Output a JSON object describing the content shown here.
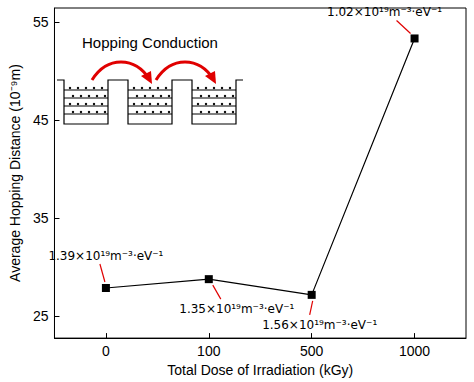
{
  "chart_data": {
    "type": "line",
    "categories": [
      "0",
      "100",
      "500",
      "1000"
    ],
    "values": [
      27.9,
      28.8,
      27.2,
      53.3
    ],
    "color": "#000000",
    "marker": "square",
    "xlabel": "Total Dose of Irradiation (kGy)",
    "ylabel": "Average Hopping Distance (10⁻⁹m)",
    "ylim": [
      22.8,
      56.4
    ],
    "yticks": [
      25,
      35,
      45,
      55
    ],
    "grid": false,
    "annotations": [
      {
        "category": "0",
        "text": "1.39×10¹⁹m⁻³·eV⁻¹"
      },
      {
        "category": "100",
        "text": "1.35×10¹⁹m⁻³·eV⁻¹"
      },
      {
        "category": "500",
        "text": "1.56×10¹⁹m⁻³·eV⁻¹"
      },
      {
        "category": "1000",
        "text": "1.02×10¹⁹m⁻³·eV⁻¹"
      },
      {
        "text": "Hopping Conduction"
      }
    ]
  }
}
